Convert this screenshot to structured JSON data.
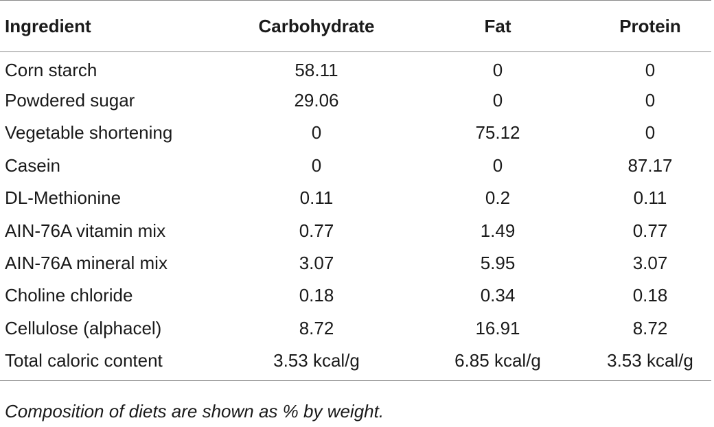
{
  "table": {
    "headers": [
      "Ingredient",
      "Carbohydrate",
      "Fat",
      "Protein"
    ],
    "rows": [
      [
        "Corn starch",
        "58.11",
        "0",
        "0"
      ],
      [
        "Powdered sugar",
        "29.06",
        "0",
        "0"
      ],
      [
        "Vegetable shortening",
        "0",
        "75.12",
        "0"
      ],
      [
        "Casein",
        "0",
        "0",
        "87.17"
      ],
      [
        "DL-Methionine",
        "0.11",
        "0.2",
        "0.11"
      ],
      [
        "AIN-76A vitamin mix",
        "0.77",
        "1.49",
        "0.77"
      ],
      [
        "AIN-76A mineral mix",
        "3.07",
        "5.95",
        "3.07"
      ],
      [
        "Choline chloride",
        "0.18",
        "0.34",
        "0.18"
      ],
      [
        "Cellulose (alphacel)",
        "8.72",
        "16.91",
        "8.72"
      ],
      [
        "Total caloric content",
        "3.53 kcal/g",
        "6.85 kcal/g",
        "3.53 kcal/g"
      ]
    ]
  },
  "footnote": "Composition of diets are shown as % by weight."
}
